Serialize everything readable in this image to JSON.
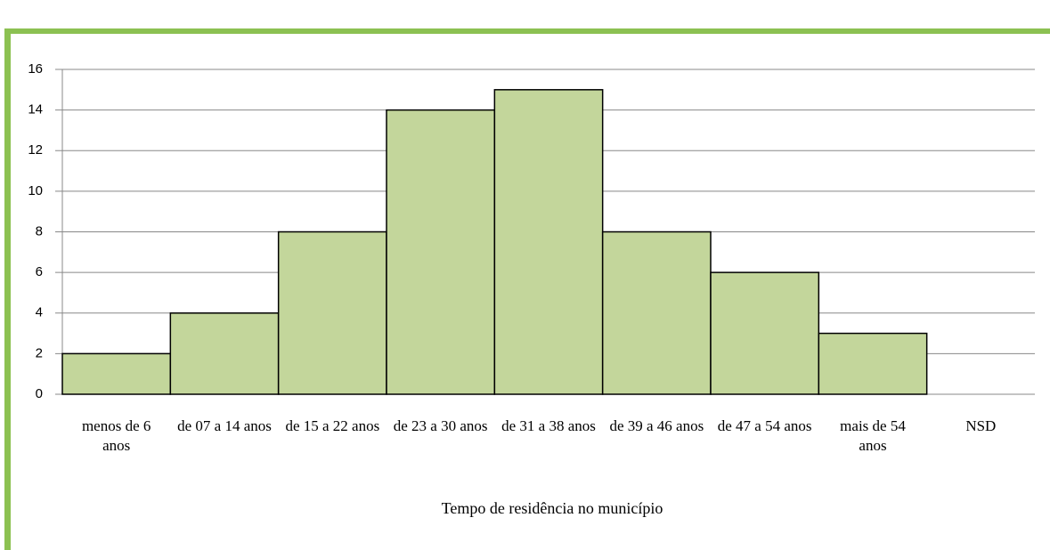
{
  "chart_data": {
    "type": "bar",
    "x_label": "Tempo de residência no município",
    "categories": [
      "menos de 6 anos",
      "de 07 a 14 anos",
      "de 15 a 22 anos",
      "de 23 a 30 anos",
      "de 31 a 38 anos",
      "de 39 a 46 anos",
      "de 47 a 54 anos",
      "mais de 54 anos",
      "NSD"
    ],
    "values": [
      2,
      4,
      8,
      14,
      15,
      8,
      6,
      3,
      0
    ],
    "color": "#c3d69b",
    "ylim": [
      0,
      16
    ],
    "yticks": [
      0,
      2,
      4,
      6,
      8,
      10,
      12,
      14,
      16
    ],
    "grid": true
  }
}
